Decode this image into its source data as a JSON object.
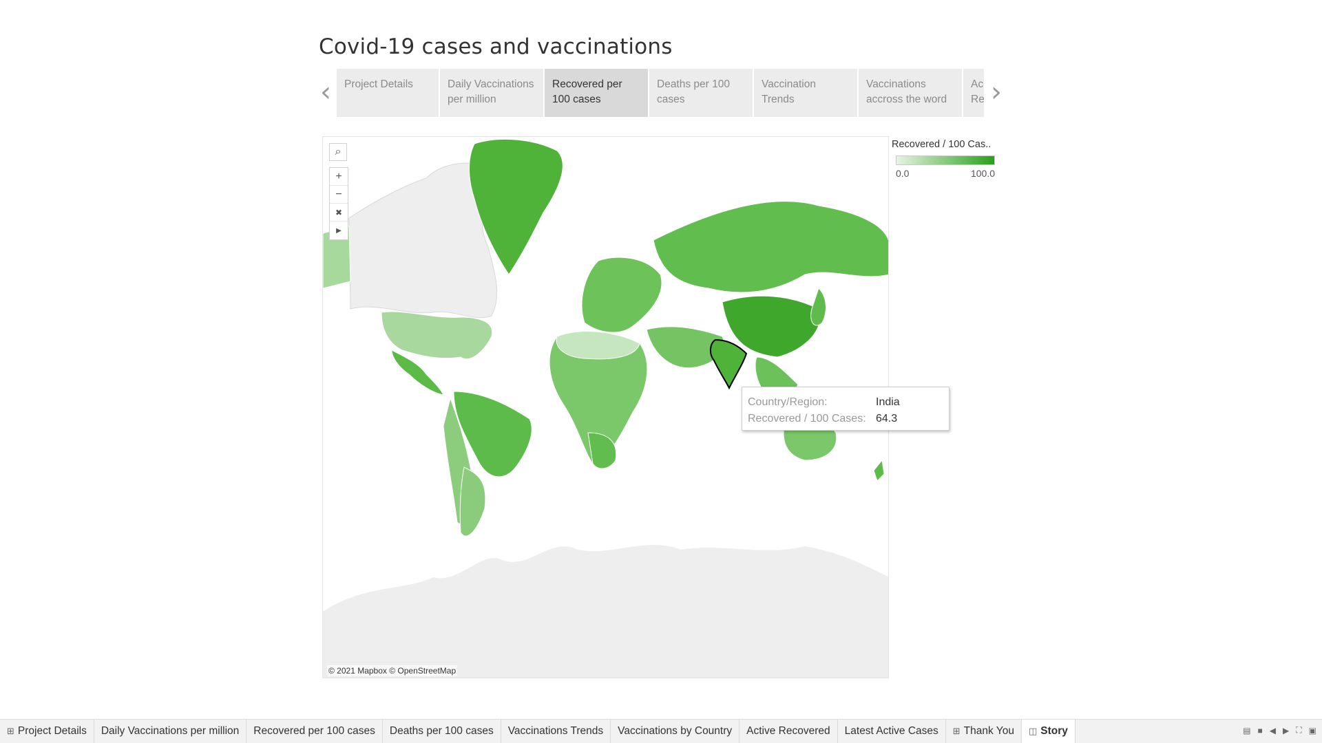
{
  "story": {
    "title": "Covid-19 cases and vaccinations"
  },
  "story_points": [
    {
      "label": "Project Details",
      "active": false
    },
    {
      "label": "Daily Vaccinations per million",
      "active": false
    },
    {
      "label": "Recovered per 100 cases",
      "active": true
    },
    {
      "label": "Deaths per 100 cases",
      "active": false
    },
    {
      "label": "Vaccination Trends",
      "active": false
    },
    {
      "label": "Vaccinations accross the word",
      "active": false
    },
    {
      "label": "Ac Re",
      "active": false
    }
  ],
  "nav": {
    "prev_icon": "chevron-left-icon",
    "next_icon": "chevron-right-icon"
  },
  "map": {
    "attribution": "© 2021 Mapbox © OpenStreetMap",
    "tools": [
      "search-icon",
      "zoom-in-icon",
      "zoom-out-icon",
      "reset-map-icon",
      "expand-toolbar-icon"
    ],
    "colors": {
      "low": "#e6f3e2",
      "high": "#2aa01b",
      "no_data": "#eeeeee",
      "border": "#ffffff"
    },
    "highlighted_country": "India"
  },
  "legend": {
    "title": "Recovered / 100 Cas..",
    "min_label": "0.0",
    "max_label": "100.0"
  },
  "tooltip": {
    "country_key": "Country/Region:",
    "country_value": "India",
    "metric_key": "Recovered / 100 Cases:",
    "metric_value": "64.3"
  },
  "sheet_tabs": [
    {
      "label": "Project Details",
      "icon": "dashboard-icon",
      "active": false
    },
    {
      "label": "Daily Vaccinations per million",
      "active": false
    },
    {
      "label": "Recovered per 100 cases",
      "active": false
    },
    {
      "label": "Deaths per 100 cases",
      "active": false
    },
    {
      "label": "Vaccinations Trends",
      "active": false
    },
    {
      "label": "Vaccinations by Country",
      "active": false
    },
    {
      "label": "Active Recovered",
      "active": false
    },
    {
      "label": "Latest Active Cases",
      "active": false
    },
    {
      "label": "Thank You",
      "icon": "dashboard-icon",
      "active": false
    },
    {
      "label": "Story",
      "icon": "story-icon",
      "active": true
    }
  ],
  "tab_controls": [
    "grid-view-icon",
    "filmstrip-icon",
    "prev-sheet-icon",
    "next-sheet-icon",
    "fullscreen-icon",
    "presentation-icon"
  ]
}
